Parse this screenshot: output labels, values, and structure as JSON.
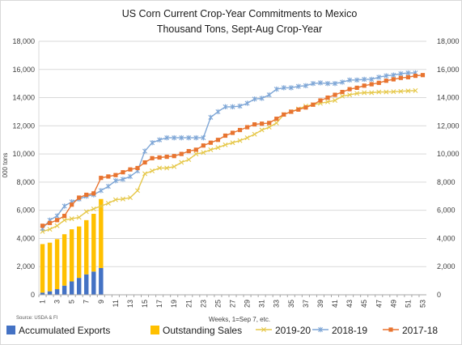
{
  "chart_data": {
    "type": "bar+line",
    "title": "US Corn Current Crop-Year Commitments to Mexico",
    "subtitle": "Thousand Tons, Sept-Aug Crop-Year",
    "xlabel": "Weeks, 1=Sep 7, etc.",
    "ylabel": "000 tons",
    "source": "Source:  USDA & FI",
    "ylim": [
      0,
      18000
    ],
    "y_ticks": [
      "0",
      "2,000",
      "4,000",
      "6,000",
      "8,000",
      "10,000",
      "12,000",
      "14,000",
      "16,000",
      "18,000"
    ],
    "y2_ticks": [
      "0",
      "2,000",
      "4,000",
      "6,000",
      "8,000",
      "10,000",
      "12,000",
      "14,000",
      "16,000",
      "18,000"
    ],
    "x_ticks": [
      "1",
      "3",
      "5",
      "7",
      "9",
      "11",
      "13",
      "15",
      "17",
      "19",
      "21",
      "23",
      "25",
      "27",
      "29",
      "31",
      "33",
      "35",
      "37",
      "39",
      "41",
      "43",
      "45",
      "47",
      "49",
      "51",
      "53"
    ],
    "weeks": [
      1,
      2,
      3,
      4,
      5,
      6,
      7,
      8,
      9,
      10,
      11,
      12,
      13,
      14,
      15,
      16,
      17,
      18,
      19,
      20,
      21,
      22,
      23,
      24,
      25,
      26,
      27,
      28,
      29,
      30,
      31,
      32,
      33,
      34,
      35,
      36,
      37,
      38,
      39,
      40,
      41,
      42,
      43,
      44,
      45,
      46,
      47,
      48,
      49,
      50,
      51,
      52,
      53
    ],
    "grid": true,
    "legend_position": "bottom",
    "colors": {
      "accumulated_exports": "#4472c4",
      "outstanding_sales": "#ffc000",
      "s2019_20": "#e6c84a",
      "s2018_19": "#7ea6d6",
      "s2017_18": "#e87430"
    },
    "bar_series": [
      {
        "name": "Accumulated Exports",
        "weeks": [
          1,
          2,
          3,
          4,
          5,
          6,
          7,
          8,
          9
        ],
        "values": [
          150,
          250,
          400,
          650,
          950,
          1200,
          1450,
          1650,
          1900
        ]
      },
      {
        "name": "Outstanding Sales",
        "weeks": [
          1,
          2,
          3,
          4,
          5,
          6,
          7,
          8,
          9
        ],
        "values": [
          3450,
          3450,
          3550,
          3650,
          3700,
          3650,
          3850,
          4100,
          4900
        ]
      }
    ],
    "line_series": [
      {
        "name": "2019-20",
        "values": [
          4500,
          4650,
          4900,
          5300,
          5400,
          5500,
          5900,
          6100,
          6300,
          6500,
          6750,
          6800,
          6900,
          7400,
          8600,
          8800,
          9000,
          9000,
          9100,
          9400,
          9600,
          10000,
          10100,
          10300,
          10450,
          10650,
          10800,
          10950,
          11150,
          11400,
          11700,
          11900,
          12200,
          12800,
          13000,
          13200,
          13400,
          13500,
          13600,
          13700,
          13800,
          14100,
          14200,
          14300,
          14350,
          14350,
          14400,
          14400,
          14420,
          14450,
          14480,
          14500,
          null
        ]
      },
      {
        "name": "2018-19",
        "values": [
          4700,
          5300,
          5600,
          6300,
          6600,
          6800,
          7000,
          7100,
          7400,
          7700,
          8100,
          8200,
          8400,
          8800,
          10200,
          10800,
          11000,
          11150,
          11150,
          11150,
          11150,
          11150,
          11150,
          12600,
          13000,
          13350,
          13350,
          13400,
          13600,
          13900,
          13950,
          14200,
          14600,
          14700,
          14700,
          14800,
          14850,
          15000,
          15050,
          15000,
          15000,
          15100,
          15250,
          15250,
          15300,
          15300,
          15450,
          15550,
          15600,
          15700,
          15750,
          15750,
          null
        ]
      },
      {
        "name": "2017-18",
        "values": [
          4900,
          5100,
          5300,
          5600,
          6400,
          6900,
          7100,
          7200,
          8300,
          8400,
          8500,
          8700,
          8900,
          9000,
          9400,
          9700,
          9750,
          9800,
          9850,
          10000,
          10200,
          10300,
          10600,
          10800,
          11000,
          11300,
          11500,
          11700,
          11900,
          12100,
          12150,
          12200,
          12500,
          12800,
          13000,
          13150,
          13300,
          13500,
          13800,
          14000,
          14200,
          14400,
          14600,
          14700,
          14850,
          14950,
          15050,
          15200,
          15300,
          15400,
          15450,
          15550,
          15600
        ]
      }
    ]
  }
}
